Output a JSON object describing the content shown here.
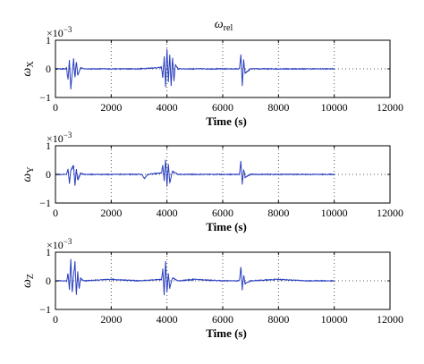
{
  "figure": {
    "title": "ω",
    "title_sub": "rel",
    "line_color": "#2a3fbf",
    "axis_color": "#000000"
  },
  "chart_data": [
    {
      "type": "line",
      "ylabel": "ω",
      "ylabel_sub": "X",
      "exponent_base": "×10",
      "exponent_power": "−3",
      "xlabel": "Time (s)",
      "xlim": [
        0,
        12000
      ],
      "ylim": [
        -1,
        1
      ],
      "xticks": [
        0,
        2000,
        4000,
        6000,
        8000,
        10000,
        12000
      ],
      "yticks": [
        -1,
        0,
        1
      ],
      "xtick_labels": [
        "0",
        "2000",
        "4000",
        "6000",
        "8000",
        "10000",
        "12000"
      ],
      "ytick_labels": [
        "−1",
        "0",
        "1"
      ],
      "grid": true,
      "series": [
        {
          "x": [
            0,
            400,
            450,
            500,
            550,
            650,
            700,
            750,
            800,
            900,
            1000,
            2000,
            3000,
            3800,
            3850,
            3900,
            3950,
            4000,
            4050,
            4100,
            4150,
            4200,
            4250,
            4300,
            4400,
            5000,
            6000,
            6600,
            6650,
            6700,
            6750,
            6800,
            7000,
            8000,
            9000,
            10000
          ],
          "y": [
            0.0,
            0.0,
            -0.4,
            0.3,
            -0.7,
            0.35,
            -0.3,
            0.25,
            -0.2,
            0.05,
            0.0,
            0.0,
            0.0,
            0.05,
            -0.3,
            0.4,
            -0.6,
            0.7,
            -0.5,
            0.5,
            -0.6,
            0.4,
            -0.4,
            0.15,
            0.0,
            0.0,
            0.0,
            0.0,
            0.5,
            -0.6,
            0.3,
            -0.15,
            0.0,
            0.0,
            0.0,
            0.0
          ]
        }
      ]
    },
    {
      "type": "line",
      "ylabel": "ω",
      "ylabel_sub": "Y",
      "exponent_base": "×10",
      "exponent_power": "−3",
      "xlabel": "Time (s)",
      "xlim": [
        0,
        12000
      ],
      "ylim": [
        -1,
        1
      ],
      "xticks": [
        0,
        2000,
        4000,
        6000,
        8000,
        10000,
        12000
      ],
      "yticks": [
        -1,
        0,
        1
      ],
      "xtick_labels": [
        "0",
        "2000",
        "4000",
        "6000",
        "8000",
        "10000",
        "12000"
      ],
      "ytick_labels": [
        "−1",
        "0",
        "1"
      ],
      "grid": true,
      "series": [
        {
          "x": [
            0,
            400,
            450,
            500,
            550,
            650,
            700,
            750,
            800,
            900,
            1000,
            2000,
            3100,
            3200,
            3300,
            3800,
            3850,
            3900,
            3950,
            4000,
            4050,
            4100,
            4200,
            4400,
            5000,
            6000,
            6600,
            6650,
            6700,
            6750,
            6800,
            7000,
            8000,
            9000,
            10000
          ],
          "y": [
            0.0,
            0.0,
            0.2,
            -0.3,
            0.15,
            0.3,
            -0.4,
            0.2,
            -0.2,
            0.05,
            0.0,
            0.0,
            0.0,
            -0.15,
            0.0,
            0.05,
            0.3,
            -0.2,
            0.55,
            -0.4,
            0.35,
            -0.3,
            0.1,
            0.0,
            0.0,
            0.0,
            0.0,
            0.45,
            -0.35,
            0.2,
            -0.1,
            0.0,
            0.0,
            0.0,
            0.0
          ]
        }
      ]
    },
    {
      "type": "line",
      "ylabel": "ω",
      "ylabel_sub": "Z",
      "exponent_base": "×10",
      "exponent_power": "−3",
      "xlabel": "Time (s)",
      "xlim": [
        0,
        12000
      ],
      "ylim": [
        -1,
        1
      ],
      "xticks": [
        0,
        2000,
        4000,
        6000,
        8000,
        10000,
        12000
      ],
      "yticks": [
        -1,
        0,
        1
      ],
      "xtick_labels": [
        "0",
        "2000",
        "4000",
        "6000",
        "8000",
        "10000",
        "12000"
      ],
      "ytick_labels": [
        "−1",
        "0",
        "1"
      ],
      "grid": true,
      "series": [
        {
          "x": [
            0,
            400,
            450,
            500,
            550,
            600,
            650,
            700,
            750,
            800,
            850,
            900,
            1000,
            2000,
            3000,
            3800,
            3850,
            3900,
            3950,
            4000,
            4050,
            4100,
            4200,
            4400,
            5000,
            6000,
            6600,
            6650,
            6700,
            6750,
            6800,
            7000,
            8000,
            9000,
            10000
          ],
          "y": [
            0.0,
            0.0,
            0.25,
            -0.3,
            0.75,
            -0.4,
            0.2,
            0.65,
            -0.5,
            0.3,
            -0.3,
            0.1,
            0.0,
            0.05,
            0.0,
            0.05,
            0.4,
            -0.5,
            0.7,
            -0.4,
            0.3,
            -0.25,
            0.1,
            0.0,
            0.05,
            0.0,
            0.0,
            0.5,
            -0.3,
            0.2,
            -0.1,
            0.0,
            0.05,
            0.0,
            0.0
          ]
        }
      ]
    }
  ]
}
